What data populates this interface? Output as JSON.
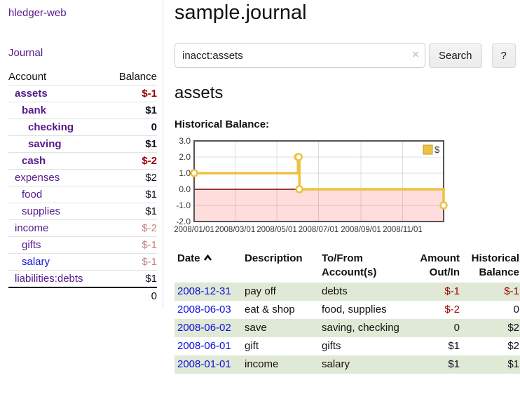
{
  "app": {
    "brand": "hledger-web"
  },
  "colors": {
    "link_purple": "#551a8b",
    "link_blue": "#1414d6",
    "date_link_blue": "#0f0fdd",
    "negative_strong": "#990000",
    "negative_soft": "#c38383",
    "row_green": "#dfe9d5",
    "chart_line_gold": "#edc240",
    "chart_negative_bg": "#ffdddd",
    "chart_zero_line": "#7a0000",
    "chart_border": "#545454"
  },
  "sidebar": {
    "nav_journal": "Journal",
    "accounts": {
      "col_account": "Account",
      "col_balance": "Balance",
      "rows": [
        {
          "name": "assets",
          "indent": 1,
          "emph": true,
          "link": "purple",
          "balance": "$-1",
          "bstyle": "neg-strong"
        },
        {
          "name": "bank",
          "indent": 2,
          "emph": true,
          "link": "purple",
          "balance": "$1",
          "bstyle": "strong"
        },
        {
          "name": "checking",
          "indent": 3,
          "emph": true,
          "link": "purple",
          "balance": "0",
          "bstyle": "strong"
        },
        {
          "name": "saving",
          "indent": 3,
          "emph": true,
          "link": "purple",
          "balance": "$1",
          "bstyle": "strong"
        },
        {
          "name": "cash",
          "indent": 2,
          "emph": true,
          "link": "purple",
          "balance": "$-2",
          "bstyle": "neg-strong"
        },
        {
          "name": "expenses",
          "indent": 1,
          "emph": false,
          "link": "purple",
          "balance": "$2",
          "bstyle": "plain"
        },
        {
          "name": "food",
          "indent": 2,
          "emph": false,
          "link": "purple",
          "balance": "$1",
          "bstyle": "plain"
        },
        {
          "name": "supplies",
          "indent": 2,
          "emph": false,
          "link": "purple",
          "balance": "$1",
          "bstyle": "plain"
        },
        {
          "name": "income",
          "indent": 1,
          "emph": false,
          "link": "purple",
          "balance": "$-2",
          "bstyle": "neg-soft"
        },
        {
          "name": "gifts",
          "indent": 2,
          "emph": false,
          "link": "purple",
          "balance": "$-1",
          "bstyle": "neg-soft"
        },
        {
          "name": "salary",
          "indent": 2,
          "emph": false,
          "link": "blue",
          "balance": "$-1",
          "bstyle": "neg-soft"
        },
        {
          "name": "liabilities:debts",
          "indent": 1,
          "emph": false,
          "link": "purple",
          "balance": "$1",
          "bstyle": "plain"
        }
      ],
      "total": "0"
    }
  },
  "main": {
    "title": "sample.journal",
    "search": {
      "value": "inacct:assets",
      "clear_icon": "×",
      "search_button": "Search",
      "help_button": "?"
    },
    "account_heading": "assets",
    "chart_title": "Historical Balance:"
  },
  "chart_data": {
    "type": "line",
    "style": "step-after",
    "title": "Historical Balance",
    "series": [
      {
        "name": "$",
        "color": "#edc240",
        "points": [
          [
            "2008-01-01",
            1
          ],
          [
            "2008-06-01",
            2
          ],
          [
            "2008-06-02",
            2
          ],
          [
            "2008-06-03",
            0
          ],
          [
            "2008-12-31",
            -1
          ]
        ]
      }
    ],
    "x_range": [
      "2008-01-01",
      "2008-12-31"
    ],
    "x_ticks": [
      "2008/01/01",
      "2008/03/01",
      "2008/05/01",
      "2008/07/01",
      "2008/09/01",
      "2008/11/01"
    ],
    "y_ticks": [
      "3.0",
      "2.0",
      "1.0",
      "0.0",
      "-1.0",
      "-2.0"
    ],
    "ylim": [
      -2,
      3
    ],
    "grid": true,
    "legend": {
      "label": "$",
      "position": "top-right"
    },
    "negative_region": true
  },
  "register": {
    "columns": [
      {
        "label": "Date",
        "sort": "ascending"
      },
      {
        "label": "Description"
      },
      {
        "label": "To/From Account(s)"
      },
      {
        "label": "Amount Out/In"
      },
      {
        "label": "Historical Balance"
      }
    ],
    "rows": [
      {
        "date": "2008-12-31",
        "description": "pay off",
        "accounts": "debts",
        "amount": "$-1",
        "amount_neg": true,
        "balance": "$-1",
        "balance_neg": true
      },
      {
        "date": "2008-06-03",
        "description": "eat & shop",
        "accounts": "food, supplies",
        "amount": "$-2",
        "amount_neg": true,
        "balance": "0",
        "balance_neg": false
      },
      {
        "date": "2008-06-02",
        "description": "save",
        "accounts": "saving, checking",
        "amount": "0",
        "amount_neg": false,
        "balance": "$2",
        "balance_neg": false
      },
      {
        "date": "2008-06-01",
        "description": "gift",
        "accounts": "gifts",
        "amount": "$1",
        "amount_neg": false,
        "balance": "$2",
        "balance_neg": false
      },
      {
        "date": "2008-01-01",
        "description": "income",
        "accounts": "salary",
        "amount": "$1",
        "amount_neg": false,
        "balance": "$1",
        "balance_neg": false
      }
    ]
  }
}
